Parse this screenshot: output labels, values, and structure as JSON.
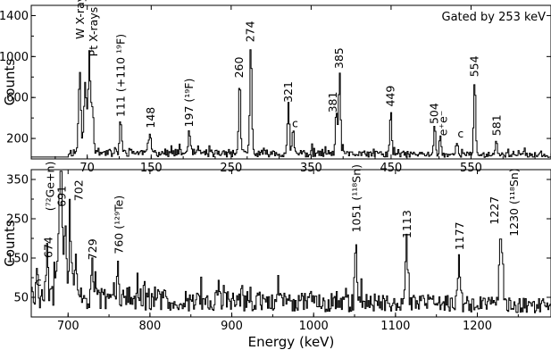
{
  "chart_data": [
    {
      "type": "line",
      "panel": "top",
      "annotation": "Gated by 253 keV",
      "ylabel": "Counts",
      "xlim": [
        0,
        650
      ],
      "ylim": [
        0,
        1500
      ],
      "xticks": [
        {
          "v": 70,
          "t": "70"
        },
        {
          "v": 150,
          "t": "150"
        },
        {
          "v": 250,
          "t": "250"
        },
        {
          "v": 350,
          "t": "350"
        },
        {
          "v": 450,
          "t": "450"
        },
        {
          "v": 550,
          "t": "550"
        }
      ],
      "yticks": [
        {
          "v": 200,
          "t": "200"
        },
        {
          "v": 600,
          "t": "600"
        },
        {
          "v": 1000,
          "t": "1000"
        },
        {
          "v": 1400,
          "t": "1400"
        }
      ],
      "background_start": 45,
      "peaks": [
        {
          "e": 60,
          "h": 780,
          "w": 1.5
        },
        {
          "e": 67,
          "h": 700,
          "w": 1.5
        },
        {
          "e": 72,
          "h": 900,
          "w": 1.5
        },
        {
          "e": 76,
          "h": 420,
          "w": 1.5
        },
        {
          "e": 111,
          "h": 330,
          "w": 1.2
        },
        {
          "e": 148,
          "h": 210,
          "w": 1.2
        },
        {
          "e": 197,
          "h": 230,
          "w": 1.2
        },
        {
          "e": 260,
          "h": 710,
          "w": 1.2
        },
        {
          "e": 274,
          "h": 1060,
          "w": 1.2
        },
        {
          "e": 321,
          "h": 470,
          "w": 1.2
        },
        {
          "e": 327,
          "h": 250,
          "w": 1.2
        },
        {
          "e": 381,
          "h": 380,
          "w": 1.2
        },
        {
          "e": 385,
          "h": 800,
          "w": 1.2
        },
        {
          "e": 449,
          "h": 430,
          "w": 1.2
        },
        {
          "e": 504,
          "h": 280,
          "w": 1.2
        },
        {
          "e": 511,
          "h": 170,
          "w": 1.2
        },
        {
          "e": 532,
          "h": 140,
          "w": 1.2
        },
        {
          "e": 554,
          "h": 720,
          "w": 1.2
        },
        {
          "e": 581,
          "h": 150,
          "w": 1.2
        }
      ],
      "labels": [
        {
          "e": 62,
          "yv": 1170,
          "t": "W X-rays",
          "rot": true
        },
        {
          "e": 79,
          "yv": 1000,
          "t": "Pt X-rays",
          "rot": true
        },
        {
          "e": 113,
          "yv": 410,
          "t": "111 (+110 ¹⁹F)",
          "rot": true
        },
        {
          "e": 150,
          "yv": 300,
          "t": "148",
          "rot": true
        },
        {
          "e": 198,
          "yv": 310,
          "t": "197 (¹⁹F)",
          "rot": true
        },
        {
          "e": 261,
          "yv": 790,
          "t": "260",
          "rot": true
        },
        {
          "e": 275,
          "yv": 1140,
          "t": "274",
          "rot": true
        },
        {
          "e": 322,
          "yv": 550,
          "t": "321",
          "rot": true
        },
        {
          "e": 330,
          "yv": 310,
          "t": "c",
          "rot": false
        },
        {
          "e": 378,
          "yv": 450,
          "t": "381",
          "rot": true
        },
        {
          "e": 386,
          "yv": 880,
          "t": "385",
          "rot": true
        },
        {
          "e": 450,
          "yv": 510,
          "t": "449",
          "rot": true
        },
        {
          "e": 505,
          "yv": 340,
          "t": "504",
          "rot": true
        },
        {
          "e": 516,
          "yv": 225,
          "t": "e⁺e⁻",
          "rot": true
        },
        {
          "e": 537,
          "yv": 210,
          "t": "c",
          "rot": false
        },
        {
          "e": 555,
          "yv": 800,
          "t": "554",
          "rot": true
        },
        {
          "e": 583,
          "yv": 225,
          "t": "581",
          "rot": true
        }
      ]
    },
    {
      "type": "line",
      "panel": "bottom",
      "xlabel": "Energy (keV)",
      "ylabel": "Counts",
      "xlim": [
        655,
        1290
      ],
      "ylim": [
        0,
        375
      ],
      "xticks": [
        {
          "v": 700,
          "t": "700"
        },
        {
          "v": 800,
          "t": "800"
        },
        {
          "v": 900,
          "t": "900"
        },
        {
          "v": 1000,
          "t": "1000"
        },
        {
          "v": 1100,
          "t": "1100"
        },
        {
          "v": 1200,
          "t": "1200"
        }
      ],
      "yticks": [
        {
          "v": 50,
          "t": "50"
        },
        {
          "v": 150,
          "t": "150"
        },
        {
          "v": 250,
          "t": "250"
        },
        {
          "v": 350,
          "t": "350"
        }
      ],
      "background_start": 655,
      "peaks": [
        {
          "e": 662,
          "h": 55,
          "w": 1.3
        },
        {
          "e": 674,
          "h": 120,
          "w": 1.3
        },
        {
          "e": 688,
          "h": 150,
          "w": 2.5
        },
        {
          "e": 691,
          "h": 270,
          "w": 1.5
        },
        {
          "e": 696,
          "h": 170,
          "w": 1.5
        },
        {
          "e": 702,
          "h": 190,
          "w": 1.5
        },
        {
          "e": 709,
          "h": 90,
          "w": 2
        },
        {
          "e": 729,
          "h": 110,
          "w": 1.2
        },
        {
          "e": 760,
          "h": 85,
          "w": 1.2
        },
        {
          "e": 1051,
          "h": 175,
          "w": 1.2
        },
        {
          "e": 1113,
          "h": 160,
          "w": 1.2
        },
        {
          "e": 1177,
          "h": 130,
          "w": 1.2
        },
        {
          "e": 1227,
          "h": 175,
          "w": 1.2
        },
        {
          "e": 1230,
          "h": 140,
          "w": 1.2
        }
      ],
      "labels": [
        {
          "e": 664,
          "yv": 80,
          "t": "c",
          "rot": false
        },
        {
          "e": 677,
          "yv": 150,
          "t": "674",
          "rot": true
        },
        {
          "e": 679,
          "yv": 270,
          "t": "(⁷²Ge+n)",
          "rot": true
        },
        {
          "e": 693,
          "yv": 280,
          "t": "691",
          "rot": true
        },
        {
          "e": 714,
          "yv": 295,
          "t": "702",
          "rot": true
        },
        {
          "e": 731,
          "yv": 145,
          "t": "729",
          "rot": true
        },
        {
          "e": 763,
          "yv": 160,
          "t": "760 (¹²⁹Te)",
          "rot": true
        },
        {
          "e": 1053,
          "yv": 215,
          "t": "1051 (¹¹⁸Sn)",
          "rot": true
        },
        {
          "e": 1115,
          "yv": 200,
          "t": "1113",
          "rot": true
        },
        {
          "e": 1179,
          "yv": 170,
          "t": "1177",
          "rot": true
        },
        {
          "e": 1222,
          "yv": 235,
          "t": "1227",
          "rot": true
        },
        {
          "e": 1246,
          "yv": 205,
          "t": "1230 (¹¹⁸Sn)",
          "rot": true
        }
      ]
    }
  ]
}
